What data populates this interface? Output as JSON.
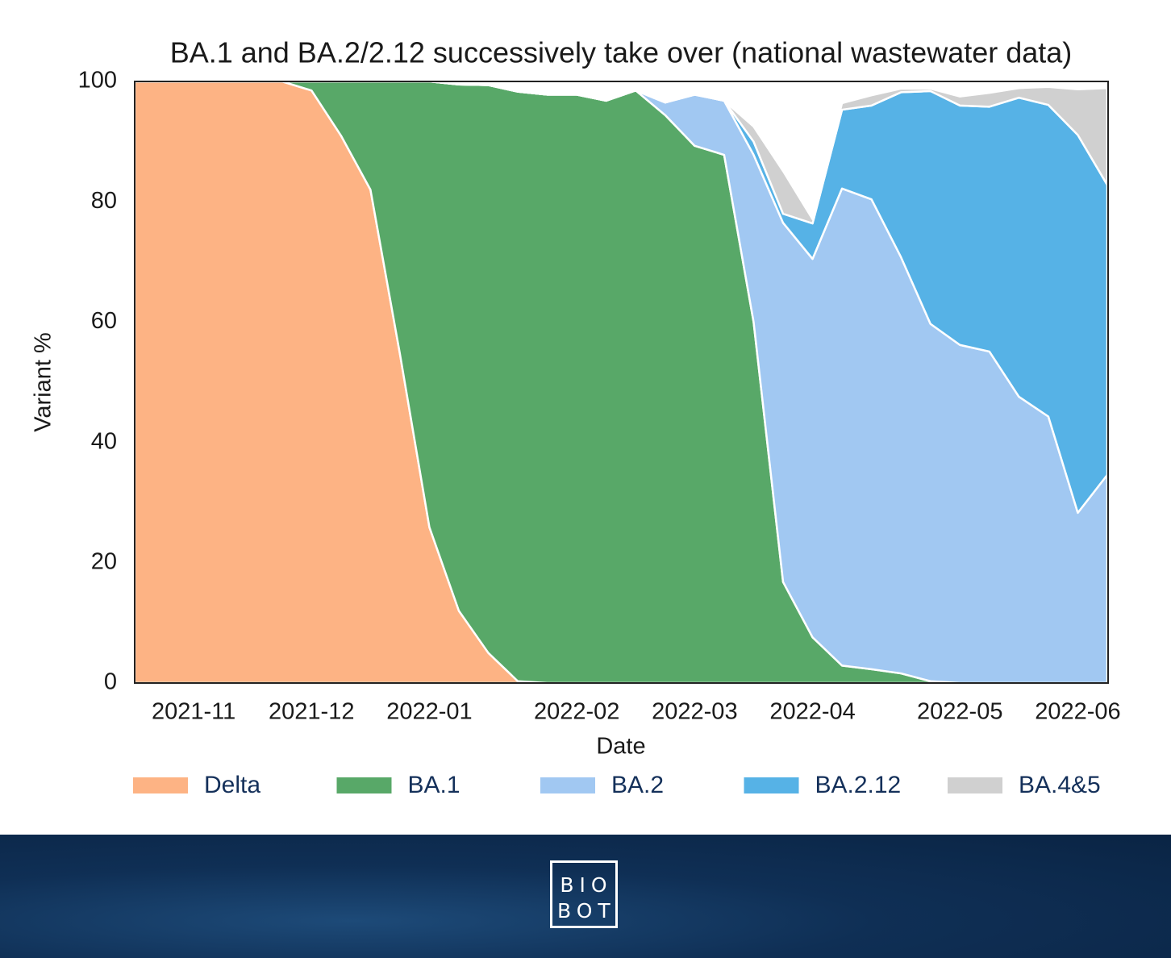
{
  "chart_data": {
    "type": "stackedarea",
    "title": "BA.1 and BA.2/2.12 successively take over (national wastewater data)",
    "xlabel": "Date",
    "ylabel": "Variant %",
    "categories": [
      null,
      null,
      "2021-11",
      null,
      null,
      null,
      "2021-12",
      null,
      null,
      null,
      "2022-01",
      null,
      null,
      null,
      null,
      "2022-02",
      null,
      null,
      null,
      "2022-03",
      null,
      null,
      null,
      "2022-04",
      null,
      null,
      null,
      null,
      "2022-05",
      null,
      null,
      null,
      "2022-06",
      null
    ],
    "ylim": [
      0,
      100
    ],
    "yticks": [
      0,
      20,
      40,
      60,
      80,
      100
    ],
    "grid": false,
    "legend": "bottom",
    "series": [
      {
        "name": "Delta",
        "color": "#fdb384",
        "values": [
          100,
          100,
          100,
          100,
          100,
          100,
          98.5,
          91,
          82,
          54.7,
          25.9,
          12,
          5,
          0.3,
          0,
          0,
          0,
          0,
          0,
          0,
          0,
          0,
          0,
          0,
          0,
          0,
          0,
          0,
          0,
          0,
          0,
          0,
          0,
          0
        ]
      },
      {
        "name": "BA.1",
        "color": "#58a868",
        "values": [
          0,
          0,
          0,
          0,
          0,
          0,
          1.5,
          9,
          18,
          45.3,
          74.1,
          87.5,
          94.4,
          98,
          97.8,
          97.8,
          96.8,
          98.5,
          94.4,
          89.3,
          87.8,
          60,
          16.8,
          7.6,
          2.9,
          2.3,
          1.6,
          0.3,
          0,
          0,
          0,
          0,
          0,
          0
        ]
      },
      {
        "name": "BA.2",
        "color": "#a1c8f2",
        "values": [
          0,
          0,
          0,
          0,
          0,
          0,
          0,
          0,
          0,
          0,
          0,
          0,
          0,
          0,
          0,
          0,
          0,
          0,
          2.1,
          8.5,
          9,
          27.8,
          59.7,
          62.9,
          79.3,
          78.1,
          69.2,
          59.4,
          56.2,
          55.1,
          47.6,
          44.3,
          28.3,
          34.6
        ]
      },
      {
        "name": "BA.2.12",
        "color": "#56b2e6",
        "values": [
          0,
          0,
          0,
          0,
          0,
          0,
          0,
          0,
          0,
          0,
          0,
          0,
          0,
          0,
          0,
          0,
          0,
          0,
          0,
          0,
          0,
          2.2,
          1.5,
          5.9,
          13.1,
          15.6,
          27.4,
          38.7,
          39.8,
          40.7,
          49.7,
          51.8,
          62.8,
          48.2
        ]
      },
      {
        "name": "BA.4&5",
        "color": "#d0d0d0",
        "values": [
          0,
          0,
          0,
          0,
          0,
          0,
          0,
          0,
          0,
          0,
          0,
          0,
          0,
          0,
          0,
          0,
          0,
          0,
          0,
          0,
          0,
          2.5,
          7.1,
          0.7,
          1.1,
          1.7,
          0.6,
          0.4,
          1.5,
          2.3,
          1.6,
          3,
          7.6,
          16.1
        ]
      }
    ]
  },
  "footer": {
    "logo": [
      "BIO",
      "BOT"
    ]
  }
}
